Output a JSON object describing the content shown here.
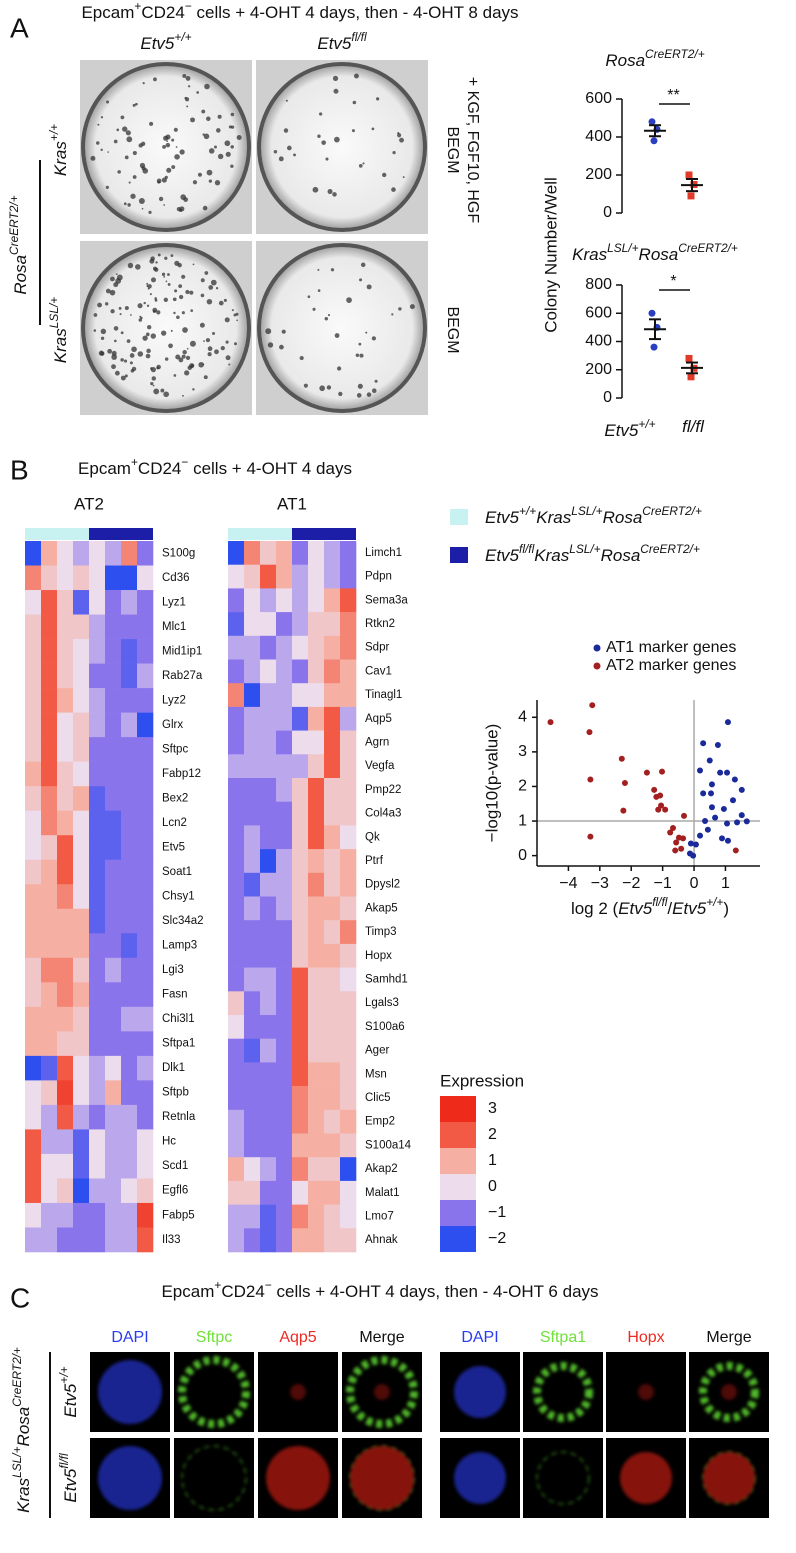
{
  "panel_a": {
    "letter": "A",
    "title": [
      {
        "text": "Epcam"
      },
      {
        "text": "+",
        "sup": true
      },
      {
        "text": "CD24"
      },
      {
        "text": "−",
        "sup": true
      },
      {
        "text": " cells + 4-OHT 4 days, then - 4-OHT 8 days"
      }
    ],
    "col_labels": [
      [
        {
          "text": "Etv5",
          "it": true
        },
        {
          "text": "+/+",
          "it": true,
          "sup": true
        }
      ],
      [
        {
          "text": "Etv5",
          "it": true
        },
        {
          "text": "fl/fl",
          "it": true,
          "sup": true
        }
      ]
    ],
    "row_group": [
      {
        "text": "Rosa",
        "it": true
      },
      {
        "text": "CreERT2/+",
        "it": true,
        "sup": true
      }
    ],
    "row_labels": [
      [
        {
          "text": "Kras",
          "it": true
        },
        {
          "text": "+/+",
          "it": true,
          "sup": true
        }
      ],
      [
        {
          "text": "Kras",
          "it": true
        },
        {
          "text": "LSL/+",
          "it": true,
          "sup": true
        }
      ]
    ],
    "media_labels": [
      [
        "BEGM",
        "+ KGF, FGF10, HGF"
      ],
      [
        "BEGM"
      ]
    ],
    "y_label": "Colony Number/Well"
  },
  "panel_b": {
    "letter": "B",
    "title": [
      {
        "text": "Epcam"
      },
      {
        "text": "+",
        "sup": true
      },
      {
        "text": "CD24"
      },
      {
        "text": "−",
        "sup": true
      },
      {
        "text": " cells + 4-OHT 4 days"
      }
    ],
    "groups": [
      {
        "color": "#c8f1f1",
        "label": [
          {
            "text": "Etv5",
            "it": true
          },
          {
            "text": "+/+",
            "it": true,
            "sup": true
          },
          {
            "text": "Kras",
            "it": true
          },
          {
            "text": "LSL/+",
            "it": true,
            "sup": true
          },
          {
            "text": "Rosa",
            "it": true
          },
          {
            "text": "CreERT2/+",
            "it": true,
            "sup": true
          }
        ]
      },
      {
        "color": "#1c1ea8",
        "label": [
          {
            "text": "Etv5",
            "it": true
          },
          {
            "text": "fl/fl",
            "it": true,
            "sup": true
          },
          {
            "text": "Kras",
            "it": true
          },
          {
            "text": "LSL/+",
            "it": true,
            "sup": true
          },
          {
            "text": "Rosa",
            "it": true
          },
          {
            "text": "CreERT2/+",
            "it": true,
            "sup": true
          }
        ]
      }
    ],
    "color_scale": {
      "title": "Expression",
      "ticks": [
        3,
        2,
        1,
        0,
        {
          "value": -1,
          "label": "−1"
        },
        {
          "value": -2,
          "label": "−2"
        }
      ],
      "colors": [
        "#ee2a1a",
        "#f25a45",
        "#f5b0a3",
        "#ecdcec",
        "#8a74ec",
        "#2d4ff0"
      ]
    }
  },
  "panel_c": {
    "letter": "C",
    "title": [
      {
        "text": "Epcam"
      },
      {
        "text": "+",
        "sup": true
      },
      {
        "text": "CD24"
      },
      {
        "text": "−",
        "sup": true
      },
      {
        "text": " cells + 4-OHT 4 days, then - 4-OHT 6 days"
      }
    ],
    "row_group": [
      {
        "text": "Kras",
        "it": true
      },
      {
        "text": "LSL/+",
        "it": true,
        "sup": true
      },
      {
        "text": "Rosa",
        "it": true
      },
      {
        "text": "CreERT2/+",
        "it": true,
        "sup": true
      }
    ],
    "row_labels": [
      [
        {
          "text": "Etv5",
          "it": true
        },
        {
          "text": "+/+",
          "it": true,
          "sup": true
        }
      ],
      [
        {
          "text": "Etv5",
          "it": true
        },
        {
          "text": "fl/fl",
          "it": true,
          "sup": true
        }
      ]
    ],
    "stains": [
      [
        "DAPI",
        "Sftpc",
        "Aqp5",
        "Merge"
      ],
      [
        "DAPI",
        "Sftpa1",
        "Hopx",
        "Merge"
      ]
    ],
    "stain_colors": [
      "#2a3cf0",
      "#6fe03a",
      "#ee2a22",
      "#111111"
    ]
  },
  "chart_data": [
    {
      "type": "dot",
      "title": [
        {
          "text": "Rosa",
          "it": true
        },
        {
          "text": "CreERT2/+",
          "it": true,
          "sup": true
        }
      ],
      "ylim": [
        0,
        600
      ],
      "yticks": [
        0,
        200,
        400,
        600
      ],
      "significance": "**",
      "groups": [
        {
          "color": "#2a3fbf",
          "marker": "circle",
          "values": [
            480,
            440,
            380
          ],
          "mean": 433,
          "sem": 29
        },
        {
          "color": "#e23a2a",
          "marker": "square",
          "values": [
            200,
            150,
            90
          ],
          "mean": 147,
          "sem": 32
        }
      ]
    },
    {
      "type": "dot",
      "title": [
        {
          "text": "Kras",
          "it": true
        },
        {
          "text": "LSL/+",
          "it": true,
          "sup": true
        },
        {
          "text": "Rosa",
          "it": true
        },
        {
          "text": "CreERT2/+",
          "it": true,
          "sup": true
        }
      ],
      "ylim": [
        0,
        800
      ],
      "yticks": [
        0,
        200,
        400,
        600,
        800
      ],
      "significance": "*",
      "x_labels": [
        [
          {
            "text": "Etv5",
            "it": true
          },
          {
            "text": "+/+",
            "it": true,
            "sup": true
          }
        ],
        [
          {
            "text": "fl/fl",
            "it": true
          }
        ]
      ],
      "groups": [
        {
          "color": "#2a3fbf",
          "marker": "circle",
          "values": [
            600,
            500,
            360
          ],
          "mean": 487,
          "sem": 70
        },
        {
          "color": "#e23a2a",
          "marker": "square",
          "values": [
            280,
            210,
            150
          ],
          "mean": 213,
          "sem": 38
        }
      ]
    },
    {
      "type": "heatmap",
      "title": "AT2",
      "column_groups": [
        0,
        0,
        0,
        0,
        1,
        1,
        1,
        1
      ],
      "rows": [
        "S100g",
        "Cd36",
        "Lyz1",
        "Mlc1",
        "Mid1ip1",
        "Rab27a",
        "Lyz2",
        "Glrx",
        "Sftpc",
        "Fabp12",
        "Bex2",
        "Lcn2",
        "Etv5",
        "Soat1",
        "Chsy1",
        "Slc34a2",
        "Lamp3",
        "Lgi3",
        "Fasn",
        "Chi3l1",
        "Sftpa1",
        "Dlk1",
        "Sftpb",
        "Retnla",
        "Hc",
        "Scd1",
        "Egfl6",
        "Fabp5",
        "Il33"
      ],
      "values": [
        [
          -2,
          1,
          0,
          -0.5,
          0,
          -0.5,
          1.5,
          -1
        ],
        [
          1.5,
          0.5,
          0,
          0.5,
          0,
          -2,
          -2,
          0
        ],
        [
          0,
          2,
          0.5,
          -1.5,
          0,
          -1,
          -0.5,
          -1
        ],
        [
          0.5,
          2,
          0.5,
          0.5,
          -0.5,
          -1,
          -1,
          -1
        ],
        [
          0.5,
          2,
          0.5,
          0,
          -0.5,
          -1,
          -1.5,
          -1
        ],
        [
          0.5,
          2,
          0.5,
          0,
          -1,
          -1,
          -1.5,
          -0.5
        ],
        [
          0.5,
          2,
          1,
          0,
          -0.5,
          -1,
          -1,
          -1
        ],
        [
          0.5,
          2,
          0,
          0.5,
          -0.5,
          -1,
          -0.5,
          -2
        ],
        [
          0.5,
          2,
          0,
          0.5,
          -1,
          -1,
          -1,
          -1
        ],
        [
          1,
          2,
          0.5,
          0,
          -1,
          -1,
          -1,
          -1
        ],
        [
          0.5,
          1.5,
          0.5,
          1,
          -1.5,
          -1,
          -1,
          -1
        ],
        [
          0,
          1.5,
          1,
          0,
          -1.5,
          -1.5,
          -1,
          -1
        ],
        [
          0,
          0.5,
          2,
          0,
          -1.5,
          -1.5,
          -1,
          -1
        ],
        [
          0.5,
          1,
          2,
          0,
          -1.5,
          -1,
          -1,
          -1
        ],
        [
          1,
          1,
          1.5,
          0,
          -1.5,
          -1,
          -1,
          -1
        ],
        [
          1,
          1,
          1,
          1,
          -1.5,
          -1,
          -1,
          -1
        ],
        [
          1,
          1,
          1,
          1,
          -1,
          -1,
          -1.5,
          -1
        ],
        [
          0.5,
          1.5,
          1.5,
          0.5,
          -1,
          -0.5,
          -1,
          -1
        ],
        [
          0.5,
          1,
          1.5,
          1,
          -1,
          -1,
          -1,
          -1
        ],
        [
          1,
          1,
          1,
          0.5,
          -1,
          -1,
          -0.5,
          -0.5
        ],
        [
          1,
          1,
          0.5,
          0.5,
          -1,
          -1,
          -1,
          -1
        ],
        [
          -2,
          -1.5,
          2,
          0,
          -0.5,
          0,
          -1,
          -0.5
        ],
        [
          0,
          0.5,
          2.5,
          0,
          -0.5,
          1,
          -1,
          -1
        ],
        [
          0,
          -0.5,
          2,
          -0.5,
          -1,
          -0.5,
          -0.5,
          -1
        ],
        [
          2,
          -0.5,
          -0.5,
          -1.5,
          0,
          -0.5,
          -0.5,
          0
        ],
        [
          2,
          0,
          0,
          -1.5,
          0,
          -0.5,
          -0.5,
          0
        ],
        [
          2,
          0,
          0.5,
          -2,
          -0.5,
          -0.5,
          0,
          0.5
        ],
        [
          0,
          -0.5,
          -0.5,
          -1,
          -1,
          -0.5,
          -0.5,
          2.5
        ],
        [
          -0.5,
          -0.5,
          -1,
          -1,
          -1,
          -0.5,
          -0.5,
          2
        ]
      ]
    },
    {
      "type": "heatmap",
      "title": "AT1",
      "column_groups": [
        0,
        0,
        0,
        0,
        1,
        1,
        1,
        1
      ],
      "rows": [
        "Limch1",
        "Pdpn",
        "Sema3a",
        "Rtkn2",
        "Sdpr",
        "Cav1",
        "Tinagl1",
        "Aqp5",
        "Agrn",
        "Vegfa",
        "Pmp22",
        "Col4a3",
        "Qk",
        "Ptrf",
        "Dpysl2",
        "Akap5",
        "Timp3",
        "Hopx",
        "Samhd1",
        "Lgals3",
        "S100a6",
        "Ager",
        "Msn",
        "Clic5",
        "Emp2",
        "S100a14",
        "Akap2",
        "Malat1",
        "Lmo7",
        "Ahnak"
      ],
      "values": [
        [
          -2,
          1.5,
          0.5,
          1,
          -1,
          0,
          -0.5,
          -1
        ],
        [
          0,
          0.5,
          2,
          1,
          -0.5,
          0,
          -0.5,
          -1
        ],
        [
          -1,
          0,
          -0.5,
          0,
          -0.5,
          0,
          1,
          2
        ],
        [
          -1.5,
          0,
          0,
          -1,
          -0.5,
          0.5,
          0.5,
          1.5
        ],
        [
          -0.5,
          -0.5,
          -1,
          -0.5,
          0,
          0.5,
          1,
          1.5
        ],
        [
          -1,
          -0.5,
          0,
          -0.5,
          -1,
          0.5,
          1.5,
          1
        ],
        [
          1.5,
          -2,
          -0.5,
          -0.5,
          0,
          0,
          1,
          1
        ],
        [
          -1,
          -0.5,
          -0.5,
          -0.5,
          -1.5,
          1,
          2,
          -0.5
        ],
        [
          -1,
          -0.5,
          -0.5,
          -1,
          0,
          0,
          2,
          0.5
        ],
        [
          -0.5,
          -0.5,
          -0.5,
          -0.5,
          -0.5,
          0.5,
          2,
          0.5
        ],
        [
          -1,
          -1,
          -1,
          -0.5,
          0.5,
          2,
          0.5,
          0.5
        ],
        [
          -1,
          -1,
          -1,
          -1,
          0.5,
          2,
          0.5,
          0.5
        ],
        [
          -1,
          -0.5,
          -1,
          -1,
          0.5,
          2,
          1,
          0
        ],
        [
          -1,
          -0.5,
          -2,
          -0.5,
          0.5,
          1,
          0.5,
          1
        ],
        [
          -1,
          -1.5,
          -0.5,
          -0.5,
          0.5,
          1.5,
          0.5,
          1
        ],
        [
          -1,
          -0.5,
          -1,
          -0.5,
          0.5,
          1,
          1,
          0.5
        ],
        [
          -1,
          -1,
          -1,
          -1,
          0.5,
          1,
          0.5,
          1.5
        ],
        [
          -1,
          -1,
          -1,
          -1,
          0.5,
          1,
          1,
          0.5
        ],
        [
          -1,
          -0.5,
          -0.5,
          -1,
          2,
          0.5,
          0.5,
          0
        ],
        [
          0.5,
          -1,
          -0.5,
          -1,
          2,
          0.5,
          0.5,
          0.5
        ],
        [
          0,
          -1,
          -1,
          -1,
          2,
          0.5,
          0.5,
          0.5
        ],
        [
          -1,
          -1.5,
          -0.5,
          -1,
          2,
          0.5,
          0.5,
          0.5
        ],
        [
          -1,
          -1,
          -1,
          -1,
          2,
          1,
          1,
          0.5
        ],
        [
          -1,
          -1,
          -1,
          -1,
          1.5,
          1,
          1,
          0.5
        ],
        [
          -0.5,
          -1,
          -1,
          -1,
          1.5,
          1,
          0.5,
          1
        ],
        [
          -0.5,
          -1,
          -1,
          -1,
          1,
          1,
          1,
          0.5
        ],
        [
          1,
          0,
          -0.5,
          -1,
          1.5,
          0.5,
          0.5,
          -2
        ],
        [
          0.5,
          0.5,
          -1,
          -1,
          0,
          1,
          1,
          0
        ],
        [
          -0.5,
          -0.5,
          -1.5,
          -1,
          1.5,
          1,
          0.5,
          0
        ],
        [
          -0.5,
          -1,
          -1.5,
          -1,
          1,
          1,
          0.5,
          0.5
        ]
      ]
    },
    {
      "type": "scatter",
      "x_label": [
        {
          "text": "log 2 ("
        },
        {
          "text": "Etv5",
          "it": true
        },
        {
          "text": "fl/fl",
          "it": true,
          "sup": true
        },
        {
          "text": "/"
        },
        {
          "text": "Etv5",
          "it": true
        },
        {
          "text": "+/+",
          "it": true,
          "sup": true
        },
        {
          "text": ")"
        }
      ],
      "y_label": "−log10(p-value)",
      "xlim": [
        -5,
        2.1
      ],
      "ylim": [
        -0.3,
        4.5
      ],
      "xticks": [
        {
          "value": -4,
          "label": "−4"
        },
        {
          "value": -3,
          "label": "−3"
        },
        {
          "value": -2,
          "label": "−2"
        },
        {
          "value": -1,
          "label": "−1"
        },
        0,
        1
      ],
      "yticks": [
        0,
        1,
        2,
        3,
        4
      ],
      "ref_x": 0,
      "ref_y": 1,
      "series": [
        {
          "name": "AT1 marker genes",
          "color": "#1a2a9a",
          "x": [
            0.29,
            0.76,
            1.08,
            0.5,
            0.83,
            1.05,
            1.3,
            1.52,
            0.19,
            0.29,
            0.54,
            0.57,
            0.95,
            1.24,
            1.05,
            1.37,
            1.68,
            0.35,
            0.44,
            0.67,
            0.19,
            -0.1,
            0.06,
            -0.13,
            -0.03,
            0.89,
            1.08,
            1.52,
            0.57
          ],
          "y": [
            3.25,
            3.2,
            3.86,
            2.75,
            2.4,
            2.4,
            2.2,
            1.9,
            2.46,
            1.8,
            1.8,
            1.4,
            1.35,
            1.6,
            0.93,
            0.96,
            0.99,
            1.0,
            0.75,
            1.1,
            0.58,
            0.35,
            0.32,
            0.06,
            0.0,
            0.5,
            0.43,
            1.17,
            2.06
          ]
        },
        {
          "name": "AT2 marker genes",
          "color": "#a32020",
          "x": [
            -4.57,
            -3.24,
            -3.33,
            -3.3,
            -3.3,
            -2.3,
            -2.2,
            -2.25,
            -1.5,
            -1.27,
            -1.2,
            -1.08,
            -1.02,
            -1.05,
            -1.14,
            -0.92,
            -0.76,
            -0.6,
            -0.67,
            -0.48,
            -0.35,
            -0.41,
            -0.32,
            -0.57,
            1.33
          ],
          "y": [
            3.86,
            4.35,
            3.57,
            2.2,
            0.55,
            2.8,
            2.1,
            1.3,
            2.4,
            1.9,
            1.7,
            1.74,
            2.43,
            1.45,
            1.33,
            1.33,
            0.67,
            0.15,
            0.8,
            0.52,
            0.5,
            0.2,
            1.15,
            0.38,
            0.15
          ]
        }
      ]
    }
  ]
}
